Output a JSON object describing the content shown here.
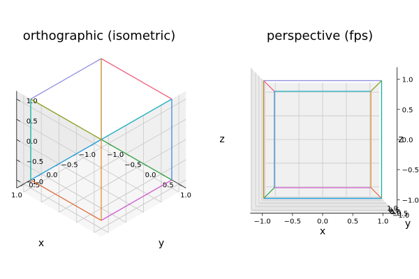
{
  "chart_data": [
    {
      "type": "line",
      "projection": "orthographic",
      "view": "isometric",
      "title": "orthographic (isometric)",
      "xlabel": "x",
      "ylabel": "y",
      "zlabel": "z",
      "xlim": [
        -1.2,
        1.2
      ],
      "ylim": [
        -1.2,
        1.2
      ],
      "zlim": [
        -1.2,
        1.2
      ],
      "xticks": [
        "−1.0",
        "−0.5",
        "0.0",
        "0.5",
        "1.0"
      ],
      "yticks": [
        "−1.0",
        "−0.5",
        "0.0",
        "0.5",
        "1.0"
      ],
      "zticks": [
        "−1.0",
        "−0.5",
        "0.0",
        "0.5",
        "1.0"
      ],
      "grid": true,
      "edges": [
        {
          "from": [
            -1,
            -1,
            -1
          ],
          "to": [
            1,
            -1,
            -1
          ]
        },
        {
          "from": [
            1,
            -1,
            -1
          ],
          "to": [
            1,
            1,
            -1
          ]
        },
        {
          "from": [
            1,
            1,
            -1
          ],
          "to": [
            -1,
            1,
            -1
          ]
        },
        {
          "from": [
            -1,
            1,
            -1
          ],
          "to": [
            -1,
            -1,
            -1
          ]
        },
        {
          "from": [
            -1,
            -1,
            1
          ],
          "to": [
            1,
            -1,
            1
          ]
        },
        {
          "from": [
            1,
            -1,
            1
          ],
          "to": [
            1,
            1,
            1
          ]
        },
        {
          "from": [
            1,
            1,
            1
          ],
          "to": [
            -1,
            1,
            1
          ]
        },
        {
          "from": [
            -1,
            1,
            1
          ],
          "to": [
            -1,
            -1,
            1
          ]
        },
        {
          "from": [
            -1,
            -1,
            -1
          ],
          "to": [
            -1,
            -1,
            1
          ]
        },
        {
          "from": [
            1,
            -1,
            -1
          ],
          "to": [
            1,
            -1,
            1
          ]
        },
        {
          "from": [
            1,
            1,
            -1
          ],
          "to": [
            1,
            1,
            1
          ]
        },
        {
          "from": [
            -1,
            1,
            -1
          ],
          "to": [
            -1,
            1,
            1
          ]
        }
      ]
    },
    {
      "type": "line",
      "projection": "perspective",
      "view": "fps",
      "title": "perspective (fps)",
      "xlabel": "x",
      "ylabel": "y",
      "zlabel": "z",
      "xlim": [
        -1.2,
        1.2
      ],
      "ylim": [
        -1.2,
        1.2
      ],
      "zlim": [
        -1.2,
        1.2
      ],
      "xticks": [
        "−1.0",
        "−0.5",
        "0.0",
        "0.5",
        "1.0"
      ],
      "yticks": [
        "1.0",
        "0.5",
        "0.0",
        "−0.5",
        "−1.0"
      ],
      "zticks": [
        "−1.0",
        "−0.5",
        "0.0",
        "0.5",
        "1.0"
      ],
      "grid": true
    }
  ],
  "colors": [
    "#1f9fdf",
    "#e07040",
    "#d060d0",
    "#3aa64a",
    "#9090e0",
    "#8aa020",
    "#20b0c0",
    "#f06080",
    "#c08820",
    "#10b0a0",
    "#e09030",
    "#3a8adf"
  ]
}
